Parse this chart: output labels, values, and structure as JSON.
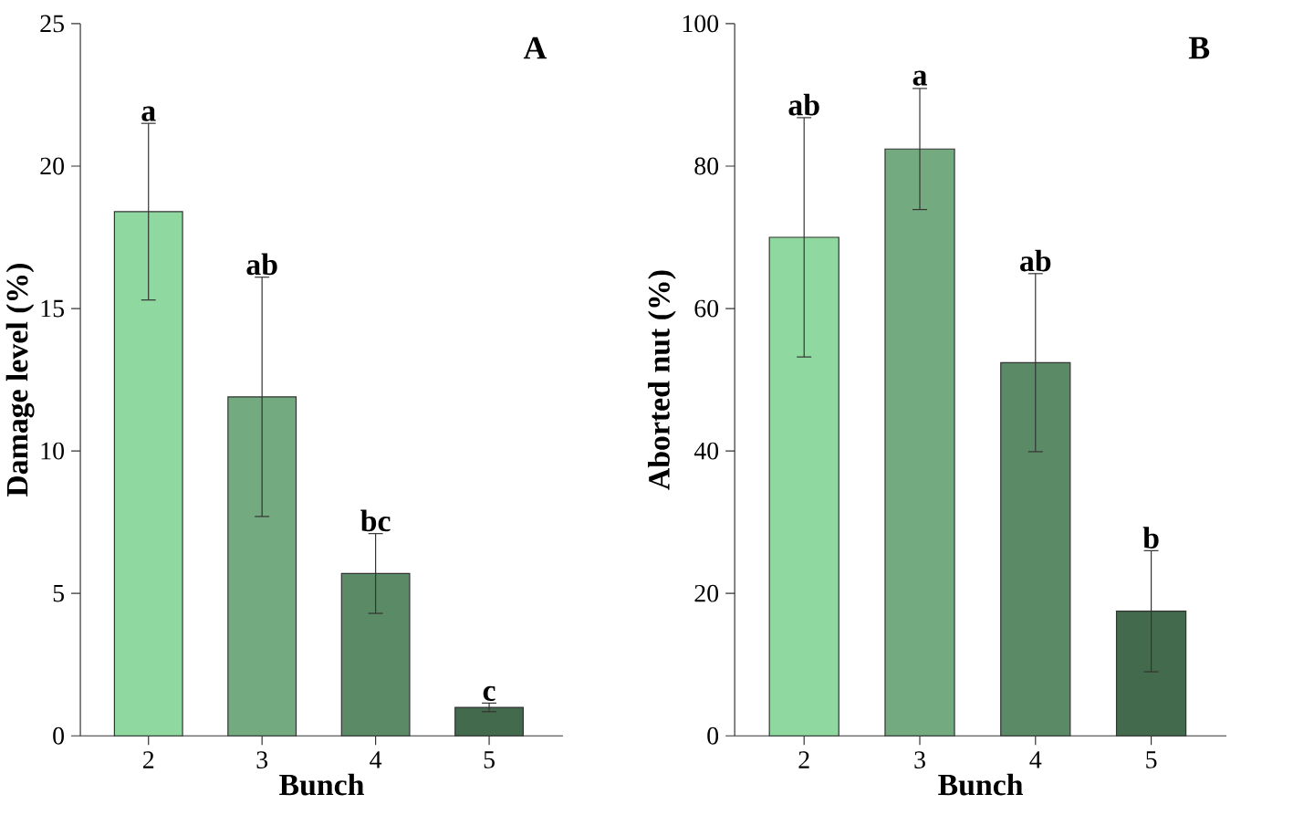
{
  "chart_data": [
    {
      "type": "bar",
      "title": "A",
      "xlabel": "Bunch",
      "ylabel": "Damage level (%)",
      "categories": [
        "2",
        "3",
        "4",
        "5"
      ],
      "values": [
        18.4,
        11.9,
        5.7,
        1.0
      ],
      "errors": [
        3.1,
        4.2,
        1.4,
        0.15
      ],
      "colors": [
        "#8fd9a0",
        "#73aa80",
        "#5b8a66",
        "#436a4c"
      ],
      "ylim": [
        0,
        25
      ],
      "yticks": [
        0,
        5,
        10,
        15,
        20,
        25
      ],
      "annotations": [
        {
          "text": "a",
          "x": "2",
          "y": 21.5
        },
        {
          "text": "ab",
          "x": "3",
          "y": 16.1
        },
        {
          "text": "bc",
          "x": "4",
          "y": 7.1
        },
        {
          "text": "c",
          "x": "5",
          "y": 1.15
        }
      ]
    },
    {
      "type": "bar",
      "title": "B",
      "xlabel": "Bunch",
      "ylabel": "Aborted nut (%)",
      "categories": [
        "2",
        "3",
        "4",
        "5"
      ],
      "values": [
        70.0,
        82.4,
        52.4,
        17.5
      ],
      "errors": [
        16.8,
        8.5,
        12.5,
        8.5
      ],
      "colors": [
        "#8fd9a0",
        "#73aa80",
        "#5b8a66",
        "#436a4c"
      ],
      "ylim": [
        0,
        100
      ],
      "yticks": [
        0,
        20,
        40,
        60,
        80,
        100
      ],
      "annotations": [
        {
          "text": "ab",
          "x": "2",
          "y": 86.8
        },
        {
          "text": "a",
          "x": "3",
          "y": 91
        },
        {
          "text": "ab",
          "x": "4",
          "y": 64.9
        },
        {
          "text": "b",
          "x": "5",
          "y": 26
        }
      ]
    }
  ]
}
